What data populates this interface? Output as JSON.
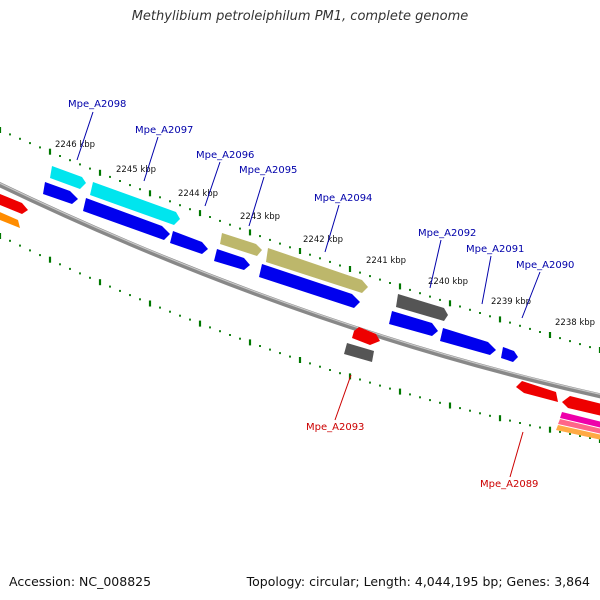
{
  "title": "Methylibium petroleiphilum PM1, complete genome",
  "footer": {
    "accession": "Accession: NC_008825",
    "topology": "Topology: circular; Length: 4,044,195 bp; Genes: 3,864"
  },
  "ticks": [
    {
      "label": "2246 kbp",
      "kbp": 2246
    },
    {
      "label": "2245 kbp",
      "kbp": 2245
    },
    {
      "label": "2244 kbp",
      "kbp": 2244
    },
    {
      "label": "2243 kbp",
      "kbp": 2243
    },
    {
      "label": "2242 kbp",
      "kbp": 2242
    },
    {
      "label": "2241 kbp",
      "kbp": 2241
    },
    {
      "label": "2240 kbp",
      "kbp": 2240
    },
    {
      "label": "2239 kbp",
      "kbp": 2239
    },
    {
      "label": "2238 kbp",
      "kbp": 2238
    }
  ],
  "genes": [
    {
      "label": "Mpe_A2098",
      "label_color": "#0000aa"
    },
    {
      "label": "Mpe_A2097",
      "label_color": "#0000aa"
    },
    {
      "label": "Mpe_A2096",
      "label_color": "#0000aa"
    },
    {
      "label": "Mpe_A2095",
      "label_color": "#0000aa"
    },
    {
      "label": "Mpe_A2094",
      "label_color": "#0000aa"
    },
    {
      "label": "Mpe_A2093",
      "label_color": "#cc0000"
    },
    {
      "label": "Mpe_A2092",
      "label_color": "#0000aa"
    },
    {
      "label": "Mpe_A2091",
      "label_color": "#0000aa"
    },
    {
      "label": "Mpe_A2090",
      "label_color": "#0000aa"
    },
    {
      "label": "Mpe_A2089",
      "label_color": "#cc0000"
    }
  ],
  "colors": {
    "cds": "#0000ee",
    "trna": "#00e5ee",
    "rrna": "#bdb76b",
    "pseudo": "#555555",
    "reverse": "#ee0000",
    "backbone": "#888888",
    "ticks": "#007700"
  }
}
